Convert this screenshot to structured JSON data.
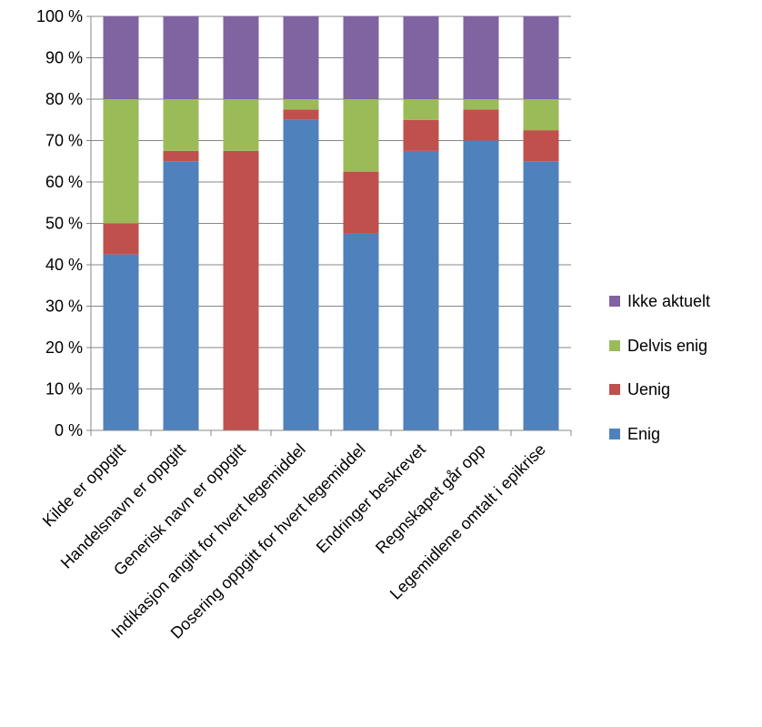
{
  "chart_data": {
    "type": "bar",
    "stacked": true,
    "percent": true,
    "categories": [
      "Kilde er oppgitt",
      "Handelsnavn er oppgitt",
      "Generisk navn er oppgitt",
      "Indikasjon angitt for hvert legemiddel",
      "Dosering oppgitt for hvert legemiddel",
      "Endringer beskrevet",
      "Regnskapet går opp",
      "Legemidlene omtalt i epikrise"
    ],
    "series": [
      {
        "name": "Enig",
        "color": "#4F81BD",
        "values": [
          42.5,
          65,
          0,
          75,
          47.5,
          67.5,
          70,
          65
        ]
      },
      {
        "name": "Uenig",
        "color": "#C0504D",
        "values": [
          7.5,
          2.5,
          67.5,
          2.5,
          15,
          7.5,
          7.5,
          7.5
        ]
      },
      {
        "name": "Delvis enig",
        "color": "#9BBB59",
        "values": [
          30,
          12.5,
          12.5,
          2.5,
          17.5,
          5,
          2.5,
          7.5
        ]
      },
      {
        "name": "Ikke aktuelt",
        "color": "#8064A2",
        "values": [
          20,
          20,
          20,
          20,
          20,
          20,
          20,
          20
        ]
      }
    ],
    "ylim": [
      0,
      100
    ],
    "yticks": [
      "0 %",
      "10 %",
      "20 %",
      "30 %",
      "40 %",
      "50 %",
      "60 %",
      "70 %",
      "80 %",
      "90 %",
      "100 %"
    ],
    "grid": true,
    "legend_position": "right",
    "legend_order": [
      "Ikke aktuelt",
      "Delvis enig",
      "Uenig",
      "Enig"
    ]
  }
}
